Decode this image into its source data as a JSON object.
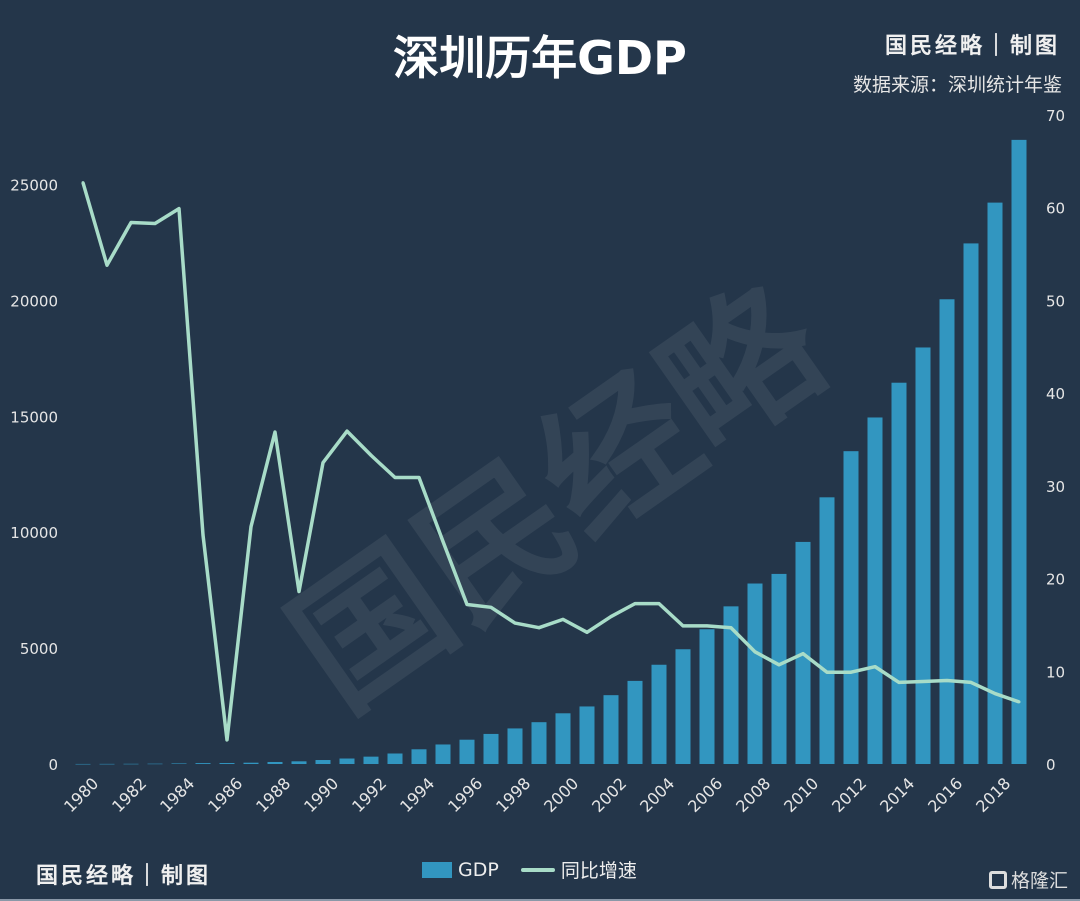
{
  "header": {
    "title": "深圳历年GDP",
    "brand": "国民经略｜制图",
    "source": "数据来源：深圳统计年鉴"
  },
  "footer": {
    "brand": "国民经略｜制图",
    "logo_text": "格隆汇"
  },
  "watermark": "国民经略",
  "colors": {
    "background": "#24364a",
    "bar": "#3296c0",
    "line": "#a8dcc8"
  },
  "chart_data": {
    "type": "bar+line",
    "title": "深圳历年GDP",
    "x": [
      1980,
      1981,
      1982,
      1983,
      1984,
      1985,
      1986,
      1987,
      1988,
      1989,
      1990,
      1991,
      1992,
      1993,
      1994,
      1995,
      1996,
      1997,
      1998,
      1999,
      2000,
      2001,
      2002,
      2003,
      2004,
      2005,
      2006,
      2007,
      2008,
      2009,
      2010,
      2011,
      2012,
      2013,
      2014,
      2015,
      2016,
      2017,
      2018,
      2019
    ],
    "x_tick_labels": [
      "1980",
      "1982",
      "1984",
      "1986",
      "1988",
      "1990",
      "1992",
      "1994",
      "1996",
      "1998",
      "2000",
      "2002",
      "2004",
      "2006",
      "2008",
      "2010",
      "2012",
      "2014",
      "2016",
      "2018"
    ],
    "series": [
      {
        "name": "GDP",
        "type": "bar",
        "axis": "left",
        "values": [
          2.7,
          5.0,
          8.3,
          13.1,
          23.4,
          39.0,
          41.7,
          55.9,
          87.0,
          115.7,
          171.7,
          236.7,
          317.3,
          453.1,
          634.7,
          842.5,
          1048.4,
          1297.4,
          1534.7,
          1804.0,
          2187.5,
          2482.5,
          2969.5,
          3585.7,
          4282.1,
          4950.9,
          5813.6,
          6801.6,
          7786.8,
          8201.3,
          9581.5,
          11505.5,
          13496.3,
          14950,
          16450,
          17970,
          20050,
          22460,
          24220,
          26927
        ]
      },
      {
        "name": "同比增速",
        "type": "line",
        "axis": "right",
        "values": [
          62.7,
          53.8,
          58.4,
          58.3,
          59.9,
          24.7,
          2.6,
          25.6,
          35.8,
          18.6,
          32.5,
          35.9,
          33.3,
          30.9,
          30.9,
          24.0,
          17.2,
          16.9,
          15.2,
          14.7,
          15.6,
          14.2,
          15.9,
          17.3,
          17.3,
          14.9,
          14.9,
          14.7,
          12.1,
          10.7,
          11.9,
          9.9,
          9.9,
          10.5,
          8.8,
          8.9,
          9.0,
          8.8,
          7.6,
          6.7
        ]
      }
    ],
    "left_axis": {
      "ylim": [
        0,
        28000
      ],
      "ticks": [
        0,
        5000,
        10000,
        15000,
        20000,
        25000
      ]
    },
    "right_axis": {
      "ylim": [
        0,
        70
      ],
      "ticks": [
        0,
        10,
        20,
        30,
        40,
        50,
        60,
        70
      ]
    },
    "legend": {
      "position": "bottom",
      "entries": [
        "GDP",
        "同比增速"
      ]
    },
    "grid": false
  }
}
